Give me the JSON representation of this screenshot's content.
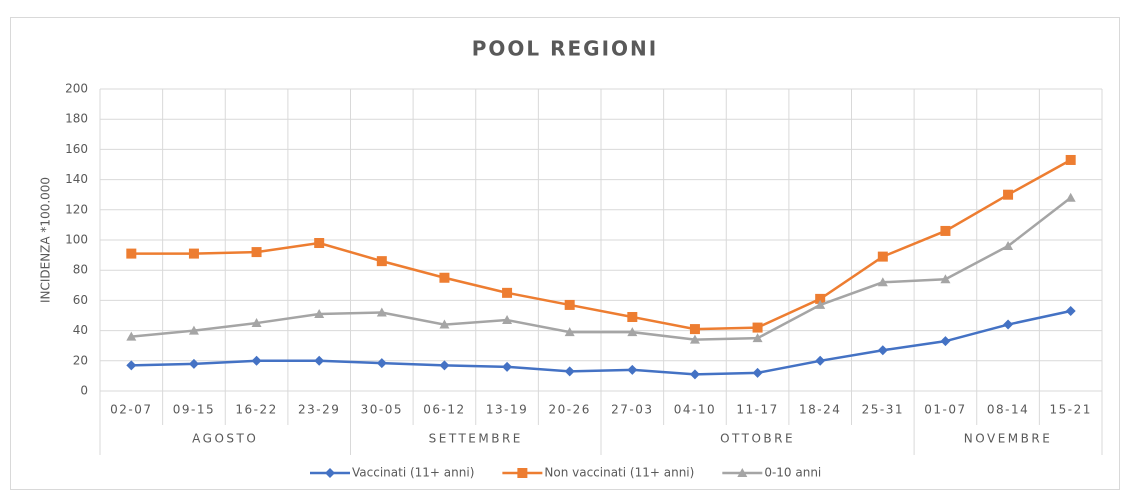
{
  "chart_data": {
    "type": "line",
    "title": "POOL REGIONI",
    "y_label": "INCIDENZA *100.000",
    "categories": [
      "02-07",
      "09-15",
      "16-22",
      "23-29",
      "30-05",
      "06-12",
      "13-19",
      "20-26",
      "27-03",
      "04-10",
      "11-17",
      "18-24",
      "25-31",
      "01-07",
      "08-14",
      "15-21"
    ],
    "groups": [
      {
        "label": "AGOSTO",
        "span": 4
      },
      {
        "label": "SETTEMBRE",
        "span": 4
      },
      {
        "label": "OTTOBRE",
        "span": 5
      },
      {
        "label": "NOVEMBRE",
        "span": 3
      }
    ],
    "series": [
      {
        "name": "Vaccinati (11+ anni)",
        "color": "#4472c4",
        "marker": "diamond",
        "values": [
          17,
          18,
          20,
          20,
          18.5,
          17,
          16,
          13,
          14,
          11,
          12,
          20,
          27,
          33,
          44,
          53
        ]
      },
      {
        "name": "Non vaccinati (11+ anni)",
        "color": "#ed7d31",
        "marker": "square",
        "values": [
          91,
          91,
          92,
          98,
          86,
          75,
          65,
          57,
          49,
          41,
          42,
          61,
          89,
          106,
          130,
          153
        ]
      },
      {
        "name": "0-10 anni",
        "color": "#a5a5a5",
        "marker": "triangle",
        "values": [
          36,
          40,
          45,
          51,
          52,
          44,
          47,
          39,
          39,
          34,
          35,
          57,
          72,
          74,
          96,
          128
        ]
      }
    ],
    "ylim": [
      0,
      200
    ],
    "yticks": [
      0,
      20,
      40,
      60,
      80,
      100,
      120,
      140,
      160,
      180,
      200
    ],
    "grid": true,
    "legend": "bottom"
  }
}
